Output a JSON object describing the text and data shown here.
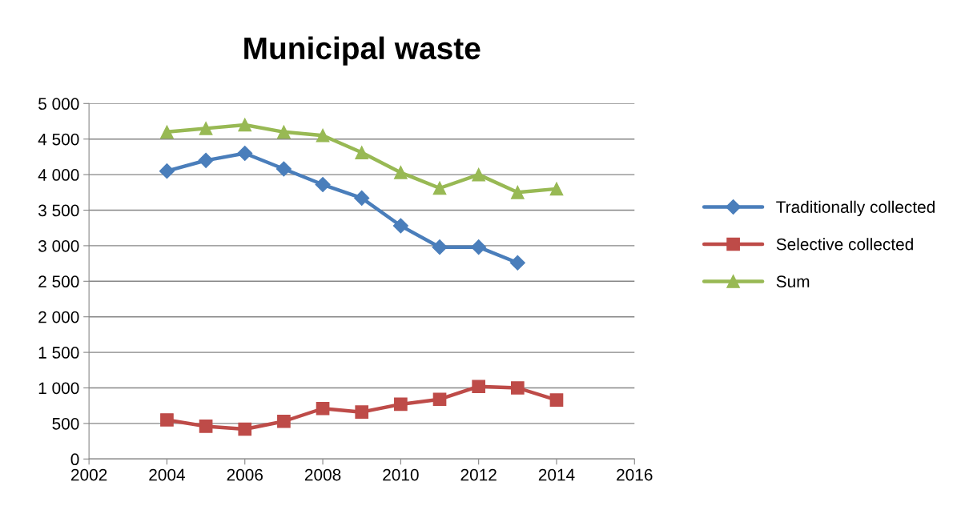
{
  "chart_data": {
    "type": "line",
    "title": "Municipal waste",
    "x": [
      2004,
      2005,
      2006,
      2007,
      2008,
      2009,
      2010,
      2011,
      2012,
      2013,
      2014
    ],
    "series": [
      {
        "name": "Traditionally collected",
        "color": "#4a7ebb",
        "marker": "diamond",
        "values": [
          4050,
          4200,
          4300,
          4080,
          3860,
          3670,
          3280,
          2980,
          2980,
          2760,
          null
        ]
      },
      {
        "name": "Selective collected",
        "color": "#be4b48",
        "marker": "square",
        "values": [
          550,
          460,
          420,
          530,
          710,
          660,
          770,
          840,
          1020,
          1000,
          830
        ]
      },
      {
        "name": "Sum",
        "color": "#98b954",
        "marker": "triangle",
        "values": [
          4600,
          4650,
          4700,
          4600,
          4550,
          4310,
          4030,
          3810,
          4000,
          3750,
          3800
        ]
      }
    ],
    "xlim": [
      2002,
      2016
    ],
    "xticks": [
      2002,
      2004,
      2006,
      2008,
      2010,
      2012,
      2014,
      2016
    ],
    "ylim": [
      0,
      5000
    ],
    "yticks": [
      {
        "value": 0,
        "label": "0"
      },
      {
        "value": 500,
        "label": "500"
      },
      {
        "value": 1000,
        "label": "1 000"
      },
      {
        "value": 1500,
        "label": "1 500"
      },
      {
        "value": 2000,
        "label": "2 000"
      },
      {
        "value": 2500,
        "label": "2 500"
      },
      {
        "value": 3000,
        "label": "3 000"
      },
      {
        "value": 3500,
        "label": "3 500"
      },
      {
        "value": 4000,
        "label": "4 000"
      },
      {
        "value": 4500,
        "label": "4 500"
      },
      {
        "value": 5000,
        "label": "5 000"
      }
    ],
    "grid": "y",
    "legend": "right",
    "line_style": "solid"
  }
}
